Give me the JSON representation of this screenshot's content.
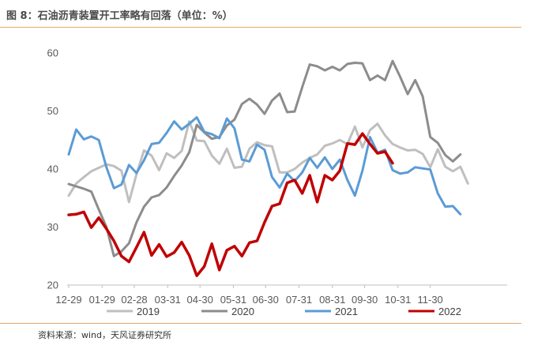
{
  "figure_title": "图 8：石油沥青装置开工率略有回落（单位：%）",
  "source_note": "资料来源：wind，天风证券研究所",
  "chart_data": {
    "type": "line",
    "title": "石油沥青装置开工率略有回落（单位：%）",
    "xlabel": "",
    "ylabel": "",
    "ylim": [
      20,
      60
    ],
    "yticks": [
      20,
      30,
      40,
      50,
      60
    ],
    "grid": false,
    "legend_position": "bottom",
    "x_points": 59,
    "x_tick_labels": [
      {
        "label": "12-29",
        "index": 0
      },
      {
        "label": "01-29",
        "index": 4.43
      },
      {
        "label": "02-28",
        "index": 8.71
      },
      {
        "label": "03-31",
        "index": 13.14
      },
      {
        "label": "04-30",
        "index": 17.43
      },
      {
        "label": "05-31",
        "index": 21.86
      },
      {
        "label": "06-30",
        "index": 26.14
      },
      {
        "label": "07-31",
        "index": 30.57
      },
      {
        "label": "08-31",
        "index": 35
      },
      {
        "label": "09-30",
        "index": 39.29
      },
      {
        "label": "10-31",
        "index": 43.71
      },
      {
        "label": "11-30",
        "index": 48
      }
    ],
    "series": [
      {
        "name": "2019",
        "color": "#bfbfbf",
        "values": [
          35.4,
          37.5,
          38.6,
          39.6,
          40.2,
          40.8,
          40.5,
          39.7,
          34.3,
          39.1,
          43.2,
          42.3,
          39.8,
          42.7,
          41.9,
          43.1,
          48.2,
          44.9,
          44.8,
          42.3,
          40.9,
          43.5,
          40.2,
          40.4,
          43.5,
          44.6,
          44.1,
          43.9,
          39.4,
          39.4,
          40.0,
          41.1,
          41.9,
          42.5,
          44.0,
          44.4,
          45.0,
          44.3,
          47.3,
          43.7,
          46.7,
          47.8,
          45.8,
          44.3,
          43.7,
          43.2,
          43.3,
          42.6,
          40.3,
          43.4,
          40.4,
          39.6,
          40.4,
          37.5
        ]
      },
      {
        "name": "2020",
        "color": "#8c8c8c",
        "values": [
          37.4,
          37.0,
          36.6,
          36.1,
          33.0,
          30.0,
          25.0,
          25.8,
          27.2,
          30.8,
          33.5,
          35.1,
          35.5,
          36.8,
          38.8,
          40.6,
          42.9,
          47.6,
          46.3,
          45.2,
          45.5,
          47.5,
          48.5,
          51.2,
          52.1,
          51.1,
          49.5,
          51.8,
          53.0,
          49.8,
          49.9,
          54.1,
          58.0,
          57.7,
          57.0,
          57.6,
          57.0,
          58.1,
          58.3,
          58.2,
          55.3,
          56.1,
          55.3,
          58.6,
          55.9,
          52.9,
          55.3,
          52.5,
          45.5,
          44.5,
          42.4,
          41.3,
          42.5
        ]
      },
      {
        "name": "2021",
        "color": "#5b9bd5",
        "values": [
          42.5,
          46.8,
          45.1,
          45.6,
          45.0,
          40.3,
          36.7,
          37.3,
          40.7,
          39.3,
          41.5,
          44.3,
          44.5,
          46.2,
          48.2,
          46.8,
          47.8,
          48.9,
          46.4,
          46.0,
          45.3,
          48.7,
          47.0,
          41.6,
          41.3,
          44.2,
          43.3,
          38.6,
          36.8,
          39.2,
          37.9,
          39.4,
          41.9,
          40.2,
          42.0,
          40.0,
          41.6,
          38.1,
          35.4,
          39.7,
          45.5,
          42.8,
          43.3,
          39.8,
          39.2,
          39.4,
          40.3,
          40.1,
          39.9,
          35.8,
          33.5,
          33.6,
          32.2
        ]
      },
      {
        "name": "2022",
        "color": "#c00000",
        "values": [
          32.1,
          32.2,
          32.6,
          29.9,
          31.6,
          29.7,
          27.6,
          25.0,
          24.0,
          26.5,
          29.1,
          25.1,
          27.0,
          24.9,
          25.6,
          27.4,
          25.1,
          21.6,
          23.2,
          27.1,
          22.6,
          26.0,
          26.7,
          25.0,
          27.3,
          27.6,
          30.8,
          33.6,
          34.0,
          37.6,
          38.1,
          35.8,
          38.9,
          34.3,
          38.9,
          38.1,
          39.7,
          44.4,
          44.2,
          46.1,
          44.3,
          42.7,
          43.0,
          41.0
        ]
      }
    ]
  }
}
